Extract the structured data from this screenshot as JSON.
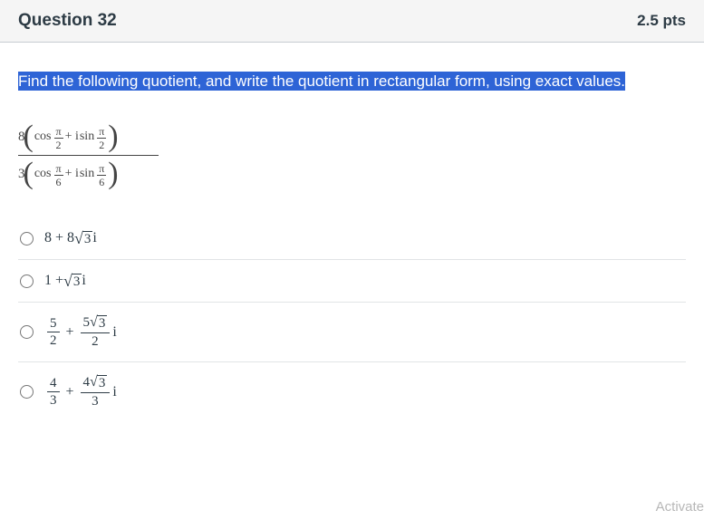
{
  "header": {
    "title": "Question 32",
    "points": "2.5 pts"
  },
  "prompt": "Find the following quotient, and write the quotient in rectangular form, using exact values.",
  "formula": {
    "numerator": {
      "coef": "8",
      "arg_num": "π",
      "arg_den": "2"
    },
    "denominator": {
      "coef": "3",
      "arg_num": "π",
      "arg_den": "6"
    },
    "cos_label": "cos",
    "sin_label": "sin",
    "plus_i": " + i "
  },
  "options": {
    "a": {
      "pre": "8 + 8",
      "rad": "3",
      "post": " i"
    },
    "b": {
      "pre": "1 + ",
      "rad": "3",
      "post": " i"
    },
    "c": {
      "frac1_n": "5",
      "frac1_d": "2",
      "plus": " + ",
      "frac2_n_pre": "5",
      "frac2_n_rad": "3",
      "frac2_d": "2",
      "tail": " i"
    },
    "d": {
      "frac1_n": "4",
      "frac1_d": "3",
      "plus": " + ",
      "frac2_n_pre": "4",
      "frac2_n_rad": "3",
      "frac2_d": "3",
      "tail": " i"
    }
  },
  "watermark": "Activate",
  "colors": {
    "highlight_bg": "#2e64d6",
    "header_bg": "#f5f5f5",
    "divider": "#e1e4e6",
    "text": "#2d3b45"
  }
}
